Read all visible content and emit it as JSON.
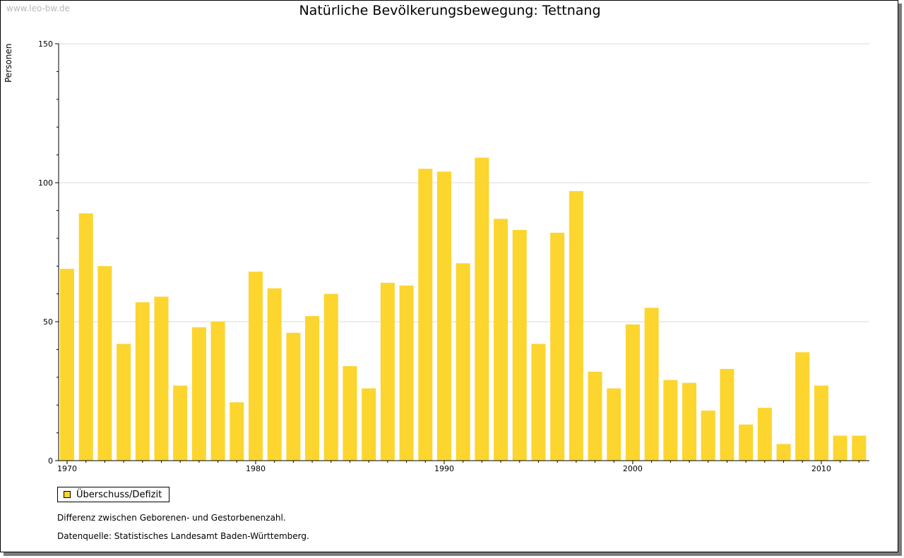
{
  "watermark": "www.leo-bw.de",
  "colors": {
    "bar": "#fcd52e",
    "grid": "#d8d8d8",
    "axis": "#000000"
  },
  "chart_data": {
    "type": "bar",
    "title": "Natürliche Bevölkerungsbewegung: Tettnang",
    "ylabel": "Personen",
    "xlabel": "",
    "ylim": [
      0,
      150
    ],
    "y_ticks": [
      0,
      50,
      100,
      150
    ],
    "x_tick_labels": [
      "1970",
      "1980",
      "1990",
      "2000",
      "2010"
    ],
    "grid": true,
    "legend_position": "bottom-left",
    "categories": [
      1970,
      1971,
      1972,
      1973,
      1974,
      1975,
      1976,
      1977,
      1978,
      1979,
      1980,
      1981,
      1982,
      1983,
      1984,
      1985,
      1986,
      1987,
      1988,
      1989,
      1990,
      1991,
      1992,
      1993,
      1994,
      1995,
      1996,
      1997,
      1998,
      1999,
      2000,
      2001,
      2002,
      2003,
      2004,
      2005,
      2006,
      2007,
      2008,
      2009,
      2010,
      2011,
      2012
    ],
    "series": [
      {
        "name": "Überschuss/Defizit",
        "color": "#fcd52e",
        "values": [
          69,
          89,
          70,
          42,
          57,
          59,
          27,
          48,
          50,
          21,
          68,
          62,
          46,
          52,
          60,
          34,
          26,
          64,
          63,
          105,
          104,
          71,
          109,
          87,
          83,
          42,
          82,
          97,
          32,
          26,
          49,
          55,
          29,
          28,
          18,
          33,
          13,
          19,
          6,
          39,
          27,
          9,
          9
        ]
      }
    ]
  },
  "notes": {
    "description": "Differenz zwischen Geborenen- und Gestorbenenzahl.",
    "source": "Datenquelle: Statistisches Landesamt Baden-Württemberg."
  }
}
